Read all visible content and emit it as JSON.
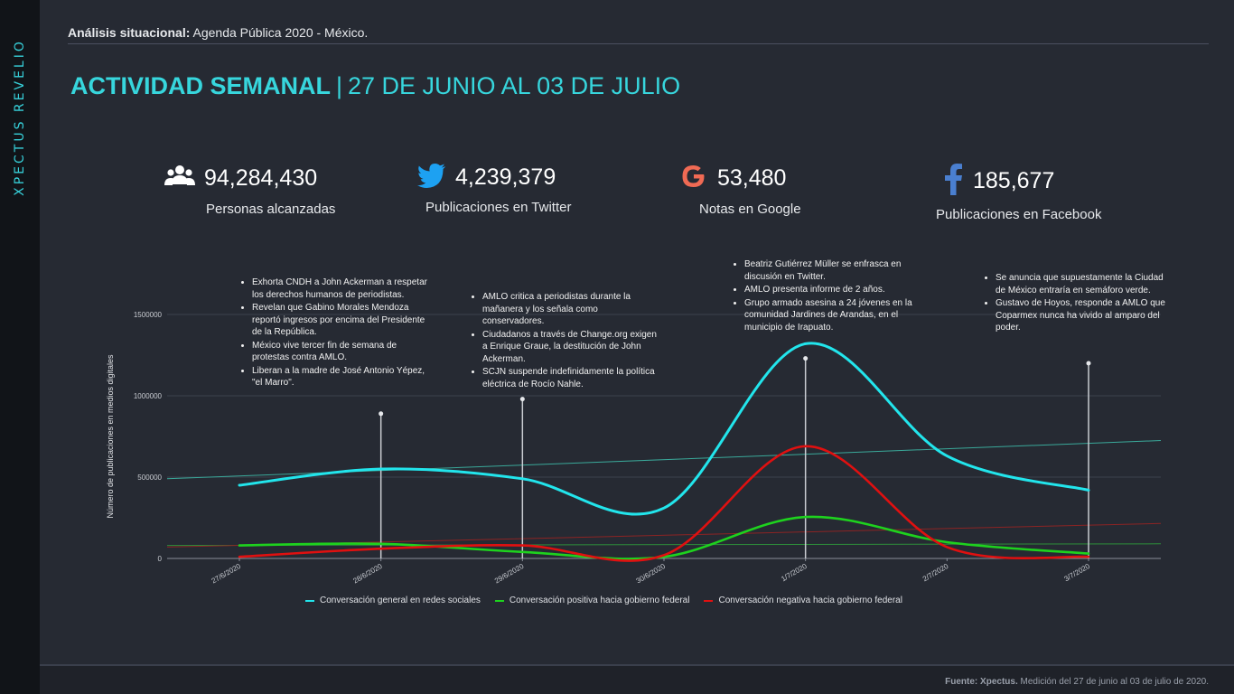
{
  "brand": "XPECTUS REVELIO",
  "header": {
    "bold": "Análisis situacional:",
    "rest": " Agenda Pública 2020 - México."
  },
  "title": {
    "main": "ACTIVIDAD SEMANAL",
    "sep": "|",
    "range": "27 DE JUNIO AL 03 DE JULIO"
  },
  "stats": [
    {
      "icon": "people-icon",
      "value": "94,284,430",
      "label": "Personas alcanzadas"
    },
    {
      "icon": "twitter-icon",
      "value": "4,239,379",
      "label": "Publicaciones en Twitter"
    },
    {
      "icon": "google-icon",
      "value": "53,480",
      "label": "Notas en Google"
    },
    {
      "icon": "facebook-icon",
      "value": "185,677",
      "label": "Publicaciones en Facebook"
    }
  ],
  "annotations": [
    {
      "items": [
        "Exhorta CNDH a John Ackerman a respetar los derechos humanos de periodistas.",
        "Revelan que Gabino Morales Mendoza reportó ingresos por encima del Presidente de la República.",
        "México vive tercer fin de semana de protestas contra AMLO.",
        "Liberan a la madre de José Antonio Yépez, \"el Marro\"."
      ]
    },
    {
      "items": [
        "AMLO critica a periodistas durante la mañanera y los señala como conservadores.",
        "Ciudadanos a través de Change.org exigen a Enrique Graue, la destitución de John Ackerman.",
        "SCJN suspende indefinidamente la política eléctrica de Rocío Nahle."
      ]
    },
    {
      "items": [
        "Beatriz Gutiérrez Müller se enfrasca en discusión en Twitter.",
        "AMLO presenta informe de 2 años.",
        "Grupo armado asesina a 24 jóvenes en la comunidad Jardines de Arandas, en el municipio de Irapuato."
      ]
    },
    {
      "items": [
        "Se anuncia que  supuestamente la Ciudad de México entraría en semáforo verde.",
        "Gustavo de Hoyos, responde a AMLO que Coparmex nunca ha vivido al amparo del poder."
      ]
    }
  ],
  "chart_data": {
    "type": "line",
    "categories": [
      "27/6/2020",
      "28/6/2020",
      "29/6/2020",
      "30/6/2020",
      "1/7/2020",
      "2/7/2020",
      "3/7/2020"
    ],
    "ylabel": "Número de publicaciones en medios digitales",
    "ylim": [
      0,
      1500000
    ],
    "yticks": [
      "0",
      "500000",
      "1000000",
      "1500000"
    ],
    "grid": true,
    "legend_position": "bottom",
    "series": [
      {
        "name": "Conversación general en redes sociales",
        "color": "#22e5ec",
        "values": [
          450000,
          550000,
          490000,
          310000,
          1320000,
          630000,
          420000
        ]
      },
      {
        "name": "Conversación positiva hacia gobierno federal",
        "color": "#1ed21e",
        "values": [
          80000,
          90000,
          40000,
          10000,
          255000,
          100000,
          30000
        ]
      },
      {
        "name": "Conversación negativa hacia gobierno federal",
        "color": "#e01010",
        "values": [
          10000,
          60000,
          80000,
          20000,
          690000,
          70000,
          10000
        ]
      }
    ],
    "trendlines": [
      {
        "series": "Conversación general en redes sociales",
        "color": "#3aa99a",
        "values": [
          490000,
          725000
        ]
      },
      {
        "series": "Conversación positiva hacia gobierno federal",
        "color": "#2d8f3a",
        "values": [
          80000,
          90000
        ]
      },
      {
        "series": "Conversación negativa hacia gobierno federal",
        "color": "#8c2424",
        "values": [
          70000,
          215000
        ]
      }
    ],
    "markers": [
      {
        "category": "28/6/2020",
        "value": 890000
      },
      {
        "category": "29/6/2020",
        "value": 980000
      },
      {
        "category": "1/7/2020",
        "value": 1230000
      },
      {
        "category": "3/7/2020",
        "value": 1200000
      }
    ]
  },
  "source": {
    "bold": "Fuente: Xpectus.",
    "rest": " Medición del 27 de junio al 03 de julio de 2020."
  }
}
